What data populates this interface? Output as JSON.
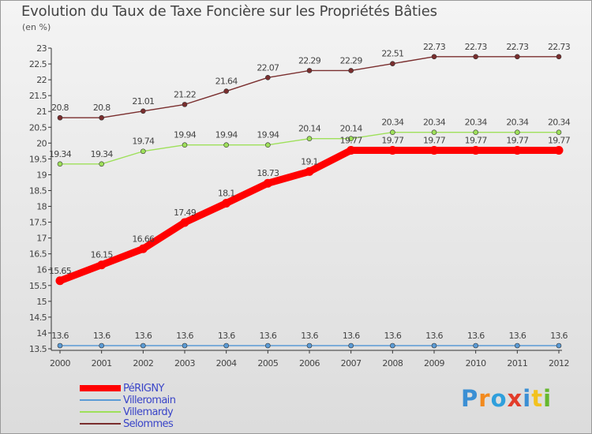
{
  "chart_data": {
    "type": "line",
    "title": "Evolution du Taux de Taxe Foncière sur les Propriétés Bâties",
    "ylabel": "(en %)",
    "xlabel": "",
    "x": [
      "2000",
      "2001",
      "2002",
      "2003",
      "2004",
      "2005",
      "2006",
      "2007",
      "2008",
      "2009",
      "2010",
      "2011",
      "2012"
    ],
    "ylim": [
      13.5,
      23
    ],
    "yticks": [
      "13.5",
      "14",
      "14.5",
      "15",
      "15.5",
      "16",
      "16.5",
      "17",
      "17.5",
      "18",
      "18.5",
      "19",
      "19.5",
      "20",
      "20.5",
      "21",
      "21.5",
      "22",
      "22.5",
      "23"
    ],
    "grid": false,
    "legend_position": "bottom-left",
    "series": [
      {
        "name": "PéRIGNY",
        "color": "#ff0000",
        "emphasis": true,
        "values": [
          15.65,
          16.15,
          16.66,
          17.49,
          18.1,
          18.73,
          19.1,
          19.77,
          19.77,
          19.77,
          19.77,
          19.77,
          19.77
        ],
        "labels": [
          "15.65",
          "16.15",
          "16.66",
          "17.49",
          "18.1",
          "18.73",
          "19.1",
          "19.77",
          "19.77",
          "19.77",
          "19.77",
          "19.77",
          "19.77"
        ]
      },
      {
        "name": "Villeromain",
        "color": "#5b9bd5",
        "values": [
          13.6,
          13.6,
          13.6,
          13.6,
          13.6,
          13.6,
          13.6,
          13.6,
          13.6,
          13.6,
          13.6,
          13.6,
          13.6
        ],
        "labels": [
          "13.6",
          "13.6",
          "13.6",
          "13.6",
          "13.6",
          "13.6",
          "13.6",
          "13.6",
          "13.6",
          "13.6",
          "13.6",
          "13.6",
          "13.6"
        ]
      },
      {
        "name": "Villemardy",
        "color": "#9ee05a",
        "values": [
          19.34,
          19.34,
          19.74,
          19.94,
          19.94,
          19.94,
          20.14,
          20.14,
          20.34,
          20.34,
          20.34,
          20.34,
          20.34
        ],
        "labels": [
          "19.34",
          "19.34",
          "19.74",
          "19.94",
          "19.94",
          "19.94",
          "20.14",
          "20.14",
          "20.34",
          "20.34",
          "20.34",
          "20.34",
          "20.34"
        ]
      },
      {
        "name": "Selommes",
        "color": "#7a2e2e",
        "values": [
          20.8,
          20.8,
          21.01,
          21.22,
          21.64,
          22.07,
          22.29,
          22.29,
          22.51,
          22.73,
          22.73,
          22.73,
          22.73
        ],
        "labels": [
          "20.8",
          "20.8",
          "21.01",
          "21.22",
          "21.64",
          "22.07",
          "22.29",
          "22.29",
          "22.51",
          "22.73",
          "22.73",
          "22.73",
          "22.73"
        ]
      }
    ]
  },
  "legend": {
    "label_color": "#3a45c8",
    "items": [
      {
        "name": "PéRIGNY",
        "color": "#ff0000",
        "thick": true
      },
      {
        "name": "Villeromain",
        "color": "#5b9bd5",
        "thick": false
      },
      {
        "name": "Villemardy",
        "color": "#9ee05a",
        "thick": false
      },
      {
        "name": "Selommes",
        "color": "#7a2e2e",
        "thick": false
      }
    ]
  },
  "logo": {
    "text": "Proxiti",
    "letter_colors": [
      "#3b8fd4",
      "#f28a1e",
      "#2f9fdc",
      "#e23c2a",
      "#3b8fd4",
      "#f2c21e",
      "#66b82e"
    ]
  }
}
